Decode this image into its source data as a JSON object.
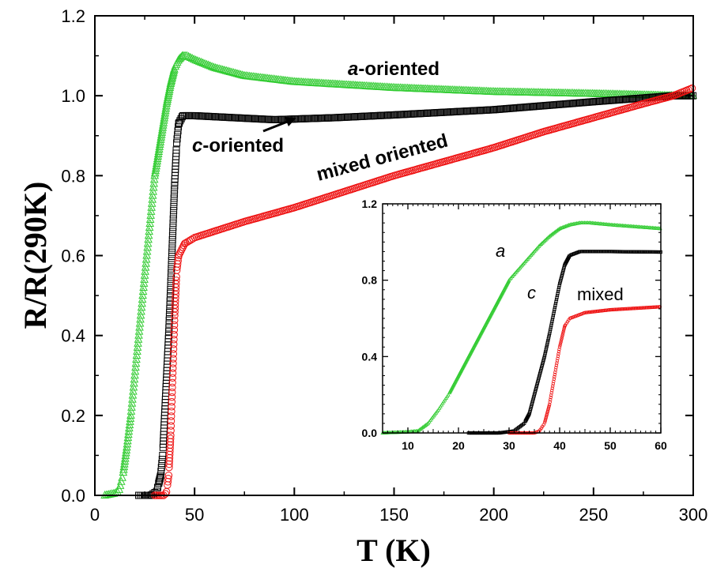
{
  "chart_data": {
    "type": "scatter",
    "xlabel": "T (K)",
    "ylabel": "R/R(290K)",
    "xlim": [
      0,
      300
    ],
    "ylim": [
      0,
      1.2
    ],
    "xticks": [
      0,
      50,
      100,
      150,
      200,
      250,
      300
    ],
    "yticks": [
      0.0,
      0.2,
      0.4,
      0.6,
      0.8,
      1.0,
      1.2
    ],
    "xtick_labels": [
      "0",
      "50",
      "100",
      "150",
      "200",
      "250",
      "300"
    ],
    "ytick_labels": [
      "0.0",
      "0.2",
      "0.4",
      "0.6",
      "0.8",
      "1.0",
      "1.2"
    ],
    "series": [
      {
        "name": "a-oriented",
        "color": "#33cc33",
        "marker": "triangle",
        "points": [
          [
            5,
            0.0
          ],
          [
            10,
            0.005
          ],
          [
            12,
            0.01
          ],
          [
            14,
            0.05
          ],
          [
            16,
            0.12
          ],
          [
            18,
            0.2
          ],
          [
            20,
            0.3
          ],
          [
            22,
            0.4
          ],
          [
            24,
            0.5
          ],
          [
            26,
            0.6
          ],
          [
            28,
            0.7
          ],
          [
            30,
            0.8
          ],
          [
            32,
            0.86
          ],
          [
            34,
            0.92
          ],
          [
            36,
            0.98
          ],
          [
            38,
            1.03
          ],
          [
            40,
            1.07
          ],
          [
            42,
            1.09
          ],
          [
            44,
            1.1
          ],
          [
            46,
            1.1
          ],
          [
            50,
            1.09
          ],
          [
            60,
            1.07
          ],
          [
            75,
            1.05
          ],
          [
            100,
            1.035
          ],
          [
            150,
            1.02
          ],
          [
            200,
            1.01
          ],
          [
            250,
            1.005
          ],
          [
            290,
            1.0
          ],
          [
            300,
            1.0
          ]
        ]
      },
      {
        "name": "c-oriented",
        "color": "#000000",
        "marker": "square",
        "points": [
          [
            22,
            0.0
          ],
          [
            28,
            0.0
          ],
          [
            31,
            0.01
          ],
          [
            33,
            0.05
          ],
          [
            34,
            0.1
          ],
          [
            35,
            0.2
          ],
          [
            36,
            0.3
          ],
          [
            37,
            0.4
          ],
          [
            38,
            0.52
          ],
          [
            39,
            0.65
          ],
          [
            40,
            0.78
          ],
          [
            41,
            0.88
          ],
          [
            42,
            0.93
          ],
          [
            44,
            0.95
          ],
          [
            50,
            0.95
          ],
          [
            70,
            0.945
          ],
          [
            90,
            0.94
          ],
          [
            120,
            0.945
          ],
          [
            150,
            0.952
          ],
          [
            200,
            0.965
          ],
          [
            250,
            0.985
          ],
          [
            290,
            1.0
          ],
          [
            300,
            1.0
          ]
        ]
      },
      {
        "name": "mixed oriented",
        "color": "#ee1111",
        "marker": "circle",
        "points": [
          [
            30,
            0.0
          ],
          [
            35,
            0.0
          ],
          [
            36,
            0.01
          ],
          [
            37,
            0.05
          ],
          [
            38,
            0.15
          ],
          [
            39,
            0.3
          ],
          [
            40,
            0.45
          ],
          [
            41,
            0.56
          ],
          [
            42,
            0.6
          ],
          [
            45,
            0.63
          ],
          [
            50,
            0.645
          ],
          [
            75,
            0.685
          ],
          [
            100,
            0.72
          ],
          [
            125,
            0.76
          ],
          [
            150,
            0.8
          ],
          [
            175,
            0.835
          ],
          [
            200,
            0.87
          ],
          [
            225,
            0.91
          ],
          [
            250,
            0.945
          ],
          [
            275,
            0.98
          ],
          [
            290,
            1.0
          ],
          [
            300,
            1.02
          ]
        ]
      }
    ],
    "annotations": {
      "a_prefix": "a",
      "a_suffix": "-oriented",
      "c_prefix": "c",
      "c_suffix": "-oriented",
      "mixed": "mixed oriented"
    },
    "inset": {
      "xlim": [
        5,
        60
      ],
      "ylim": [
        0,
        1.2
      ],
      "xticks": [
        10,
        20,
        30,
        40,
        50,
        60
      ],
      "yticks": [
        0.0,
        0.4,
        0.8,
        1.2
      ],
      "xtick_labels": [
        "10",
        "20",
        "30",
        "40",
        "50",
        "60"
      ],
      "ytick_labels": [
        "0.0",
        "0.4",
        "0.8",
        "1.2"
      ],
      "labels": {
        "a": "a",
        "c": "c",
        "mixed": "mixed"
      }
    }
  }
}
